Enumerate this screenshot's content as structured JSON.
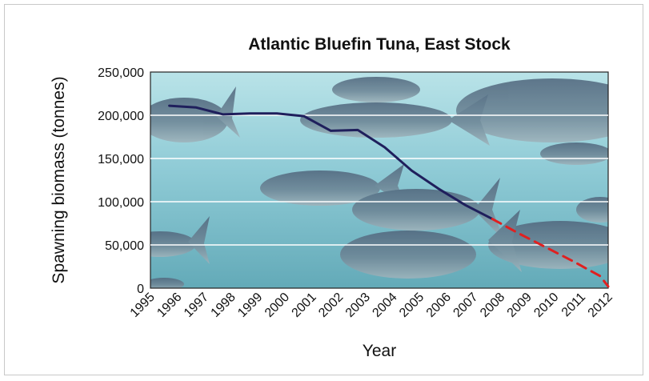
{
  "chart_data": {
    "type": "line",
    "title": "Atlantic Bluefin Tuna, East Stock",
    "xlabel": "Year",
    "ylabel": "Spawning biomass (tonnes)",
    "x_ticks": [
      "1995",
      "1996",
      "1997",
      "1998",
      "1999",
      "2000",
      "2001",
      "2002",
      "2003",
      "2004",
      "2005",
      "2006",
      "2007",
      "2008",
      "2009",
      "2010",
      "2011",
      "2012"
    ],
    "y_ticks": [
      "0",
      "50,000",
      "100,000",
      "150,000",
      "200,000",
      "250,000"
    ],
    "xlim": [
      1995,
      2012
    ],
    "ylim": [
      0,
      250000
    ],
    "grid": true,
    "background": "photo of bluefin tuna school underwater",
    "series": [
      {
        "style": "solid",
        "color": "#1f1f5c",
        "x": [
          1995.7,
          1996.7,
          1997.7,
          1998.7,
          1999.7,
          2000.7,
          2001.7,
          2002.7,
          2003.7,
          2004.7,
          2005.7,
          2006.7,
          2007.7
        ],
        "y": [
          211000,
          209000,
          201000,
          202000,
          202000,
          199000,
          182000,
          183000,
          163000,
          136000,
          115000,
          96000,
          80000
        ]
      },
      {
        "style": "dashed",
        "color": "#e02020",
        "x": [
          2007.7,
          2008.7,
          2009.7,
          2010.7,
          2011.7,
          2012.0
        ],
        "y": [
          80000,
          63000,
          47000,
          31000,
          14000,
          2000
        ]
      }
    ]
  },
  "colors": {
    "solid_line": "#1f1f5c",
    "projection_line": "#e02020",
    "water": "#8fcbd6",
    "gridline": "#ffffff"
  }
}
